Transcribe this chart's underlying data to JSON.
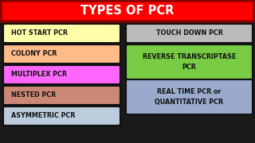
{
  "title": "TYPES OF PCR",
  "title_bg": "#FF0000",
  "title_color": "#FFFFFF",
  "bg_color": "#1a1a1a",
  "left_boxes": [
    {
      "label": "HOT START PCR",
      "color": "#FFFFAA"
    },
    {
      "label": "COLONY PCR",
      "color": "#FFBB88"
    },
    {
      "label": "MULTIPLEX PCR",
      "color": "#FF66FF"
    },
    {
      "label": "NESTED PCR",
      "color": "#CC8877"
    },
    {
      "label": "ASYMMETRIC PCR",
      "color": "#BBCCDD"
    }
  ],
  "right_boxes": [
    {
      "label": "TOUCH DOWN PCR",
      "color": "#BBBBBB",
      "lines": 1
    },
    {
      "label": "REVERSE TRANSCRIPTASE\nPCR",
      "color": "#77CC44",
      "lines": 2
    },
    {
      "label": "REAL TIME PCR or\nQUANTITATIVE PCR",
      "color": "#99AACC",
      "lines": 2
    }
  ],
  "box_edge_color": "#111111",
  "box_text_color": "#111111",
  "title_outline": "#880000"
}
